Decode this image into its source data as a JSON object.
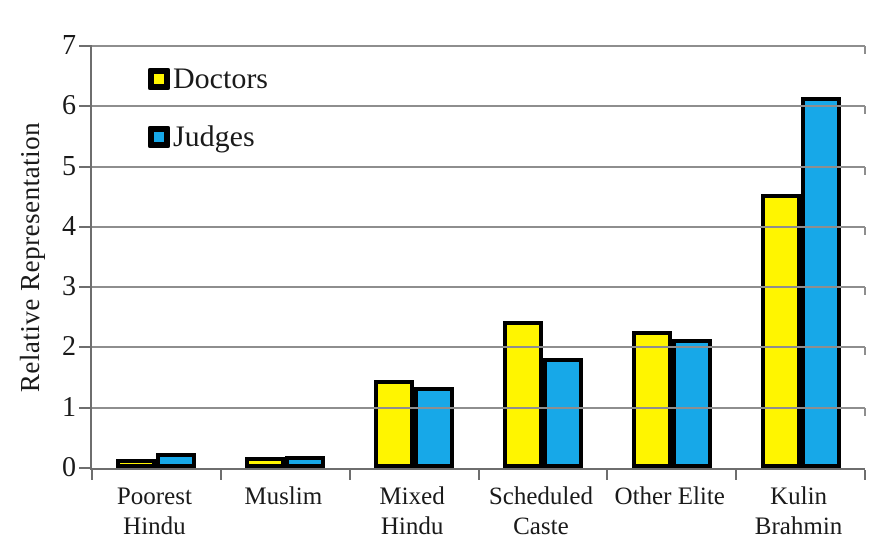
{
  "figure": {
    "background": "#ffffff",
    "text_color": "#1a1a1a"
  },
  "chart_data": {
    "type": "bar",
    "title": "",
    "xlabel": "",
    "ylabel": "Relative Representation",
    "ylim": [
      0,
      7
    ],
    "yticks": [
      0,
      1,
      2,
      3,
      4,
      5,
      6,
      7
    ],
    "grid": true,
    "legend_position": "top-left-inside",
    "categories": [
      "Poorest Hindu",
      "Muslim",
      "Mixed Hindu",
      "Scheduled Caste",
      "Other Elite",
      "Kulin Brahmin"
    ],
    "category_label_lines": [
      [
        "Poorest",
        "Hindu"
      ],
      [
        "Muslim"
      ],
      [
        "Mixed",
        "Hindu"
      ],
      [
        "Scheduled",
        "Caste"
      ],
      [
        "Other Elite"
      ],
      [
        "Kulin",
        "Brahmin"
      ]
    ],
    "series": [
      {
        "name": "Doctors",
        "color": "#FFF500",
        "values": [
          0.08,
          0.11,
          1.4,
          2.38,
          2.21,
          4.48
        ]
      },
      {
        "name": "Judges",
        "color": "#17A8E8",
        "values": [
          0.18,
          0.14,
          1.28,
          1.76,
          2.07,
          6.08
        ]
      }
    ],
    "bar_outline_color": "#000000",
    "gridline_color": "#8e8e8e",
    "axis_color": "#6e6e6e"
  }
}
